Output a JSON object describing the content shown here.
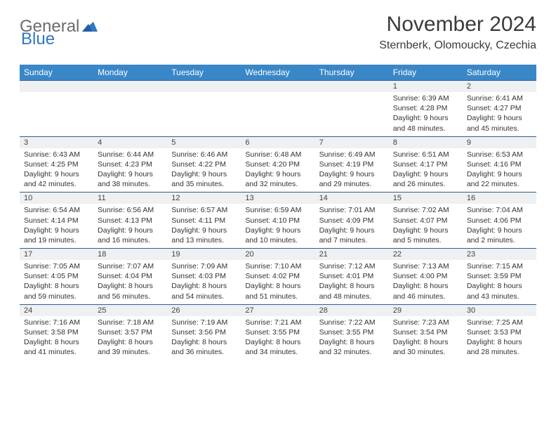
{
  "brand": {
    "word1": "General",
    "word2": "Blue"
  },
  "header": {
    "month_title": "November 2024",
    "location": "Sternberk, Olomoucky, Czechia"
  },
  "colors": {
    "header_bg": "#3a87c8",
    "header_text": "#ffffff",
    "daynum_bg": "#eef0f1",
    "row_divider": "#2f5f8f",
    "logo_blue": "#2f78bd",
    "body_text": "#333333",
    "background": "#ffffff"
  },
  "typography": {
    "month_title_fontsize": 30,
    "location_fontsize": 16,
    "dayheader_fontsize": 12,
    "daynum_fontsize": 11,
    "cell_fontsize": 10.5
  },
  "day_labels": [
    "Sunday",
    "Monday",
    "Tuesday",
    "Wednesday",
    "Thursday",
    "Friday",
    "Saturday"
  ],
  "weeks": [
    [
      {
        "n": "",
        "sr": "",
        "ss": "",
        "dl": ""
      },
      {
        "n": "",
        "sr": "",
        "ss": "",
        "dl": ""
      },
      {
        "n": "",
        "sr": "",
        "ss": "",
        "dl": ""
      },
      {
        "n": "",
        "sr": "",
        "ss": "",
        "dl": ""
      },
      {
        "n": "",
        "sr": "",
        "ss": "",
        "dl": ""
      },
      {
        "n": "1",
        "sr": "Sunrise: 6:39 AM",
        "ss": "Sunset: 4:28 PM",
        "dl": "Daylight: 9 hours and 48 minutes."
      },
      {
        "n": "2",
        "sr": "Sunrise: 6:41 AM",
        "ss": "Sunset: 4:27 PM",
        "dl": "Daylight: 9 hours and 45 minutes."
      }
    ],
    [
      {
        "n": "3",
        "sr": "Sunrise: 6:43 AM",
        "ss": "Sunset: 4:25 PM",
        "dl": "Daylight: 9 hours and 42 minutes."
      },
      {
        "n": "4",
        "sr": "Sunrise: 6:44 AM",
        "ss": "Sunset: 4:23 PM",
        "dl": "Daylight: 9 hours and 38 minutes."
      },
      {
        "n": "5",
        "sr": "Sunrise: 6:46 AM",
        "ss": "Sunset: 4:22 PM",
        "dl": "Daylight: 9 hours and 35 minutes."
      },
      {
        "n": "6",
        "sr": "Sunrise: 6:48 AM",
        "ss": "Sunset: 4:20 PM",
        "dl": "Daylight: 9 hours and 32 minutes."
      },
      {
        "n": "7",
        "sr": "Sunrise: 6:49 AM",
        "ss": "Sunset: 4:19 PM",
        "dl": "Daylight: 9 hours and 29 minutes."
      },
      {
        "n": "8",
        "sr": "Sunrise: 6:51 AM",
        "ss": "Sunset: 4:17 PM",
        "dl": "Daylight: 9 hours and 26 minutes."
      },
      {
        "n": "9",
        "sr": "Sunrise: 6:53 AM",
        "ss": "Sunset: 4:16 PM",
        "dl": "Daylight: 9 hours and 22 minutes."
      }
    ],
    [
      {
        "n": "10",
        "sr": "Sunrise: 6:54 AM",
        "ss": "Sunset: 4:14 PM",
        "dl": "Daylight: 9 hours and 19 minutes."
      },
      {
        "n": "11",
        "sr": "Sunrise: 6:56 AM",
        "ss": "Sunset: 4:13 PM",
        "dl": "Daylight: 9 hours and 16 minutes."
      },
      {
        "n": "12",
        "sr": "Sunrise: 6:57 AM",
        "ss": "Sunset: 4:11 PM",
        "dl": "Daylight: 9 hours and 13 minutes."
      },
      {
        "n": "13",
        "sr": "Sunrise: 6:59 AM",
        "ss": "Sunset: 4:10 PM",
        "dl": "Daylight: 9 hours and 10 minutes."
      },
      {
        "n": "14",
        "sr": "Sunrise: 7:01 AM",
        "ss": "Sunset: 4:09 PM",
        "dl": "Daylight: 9 hours and 7 minutes."
      },
      {
        "n": "15",
        "sr": "Sunrise: 7:02 AM",
        "ss": "Sunset: 4:07 PM",
        "dl": "Daylight: 9 hours and 5 minutes."
      },
      {
        "n": "16",
        "sr": "Sunrise: 7:04 AM",
        "ss": "Sunset: 4:06 PM",
        "dl": "Daylight: 9 hours and 2 minutes."
      }
    ],
    [
      {
        "n": "17",
        "sr": "Sunrise: 7:05 AM",
        "ss": "Sunset: 4:05 PM",
        "dl": "Daylight: 8 hours and 59 minutes."
      },
      {
        "n": "18",
        "sr": "Sunrise: 7:07 AM",
        "ss": "Sunset: 4:04 PM",
        "dl": "Daylight: 8 hours and 56 minutes."
      },
      {
        "n": "19",
        "sr": "Sunrise: 7:09 AM",
        "ss": "Sunset: 4:03 PM",
        "dl": "Daylight: 8 hours and 54 minutes."
      },
      {
        "n": "20",
        "sr": "Sunrise: 7:10 AM",
        "ss": "Sunset: 4:02 PM",
        "dl": "Daylight: 8 hours and 51 minutes."
      },
      {
        "n": "21",
        "sr": "Sunrise: 7:12 AM",
        "ss": "Sunset: 4:01 PM",
        "dl": "Daylight: 8 hours and 48 minutes."
      },
      {
        "n": "22",
        "sr": "Sunrise: 7:13 AM",
        "ss": "Sunset: 4:00 PM",
        "dl": "Daylight: 8 hours and 46 minutes."
      },
      {
        "n": "23",
        "sr": "Sunrise: 7:15 AM",
        "ss": "Sunset: 3:59 PM",
        "dl": "Daylight: 8 hours and 43 minutes."
      }
    ],
    [
      {
        "n": "24",
        "sr": "Sunrise: 7:16 AM",
        "ss": "Sunset: 3:58 PM",
        "dl": "Daylight: 8 hours and 41 minutes."
      },
      {
        "n": "25",
        "sr": "Sunrise: 7:18 AM",
        "ss": "Sunset: 3:57 PM",
        "dl": "Daylight: 8 hours and 39 minutes."
      },
      {
        "n": "26",
        "sr": "Sunrise: 7:19 AM",
        "ss": "Sunset: 3:56 PM",
        "dl": "Daylight: 8 hours and 36 minutes."
      },
      {
        "n": "27",
        "sr": "Sunrise: 7:21 AM",
        "ss": "Sunset: 3:55 PM",
        "dl": "Daylight: 8 hours and 34 minutes."
      },
      {
        "n": "28",
        "sr": "Sunrise: 7:22 AM",
        "ss": "Sunset: 3:55 PM",
        "dl": "Daylight: 8 hours and 32 minutes."
      },
      {
        "n": "29",
        "sr": "Sunrise: 7:23 AM",
        "ss": "Sunset: 3:54 PM",
        "dl": "Daylight: 8 hours and 30 minutes."
      },
      {
        "n": "30",
        "sr": "Sunrise: 7:25 AM",
        "ss": "Sunset: 3:53 PM",
        "dl": "Daylight: 8 hours and 28 minutes."
      }
    ]
  ]
}
